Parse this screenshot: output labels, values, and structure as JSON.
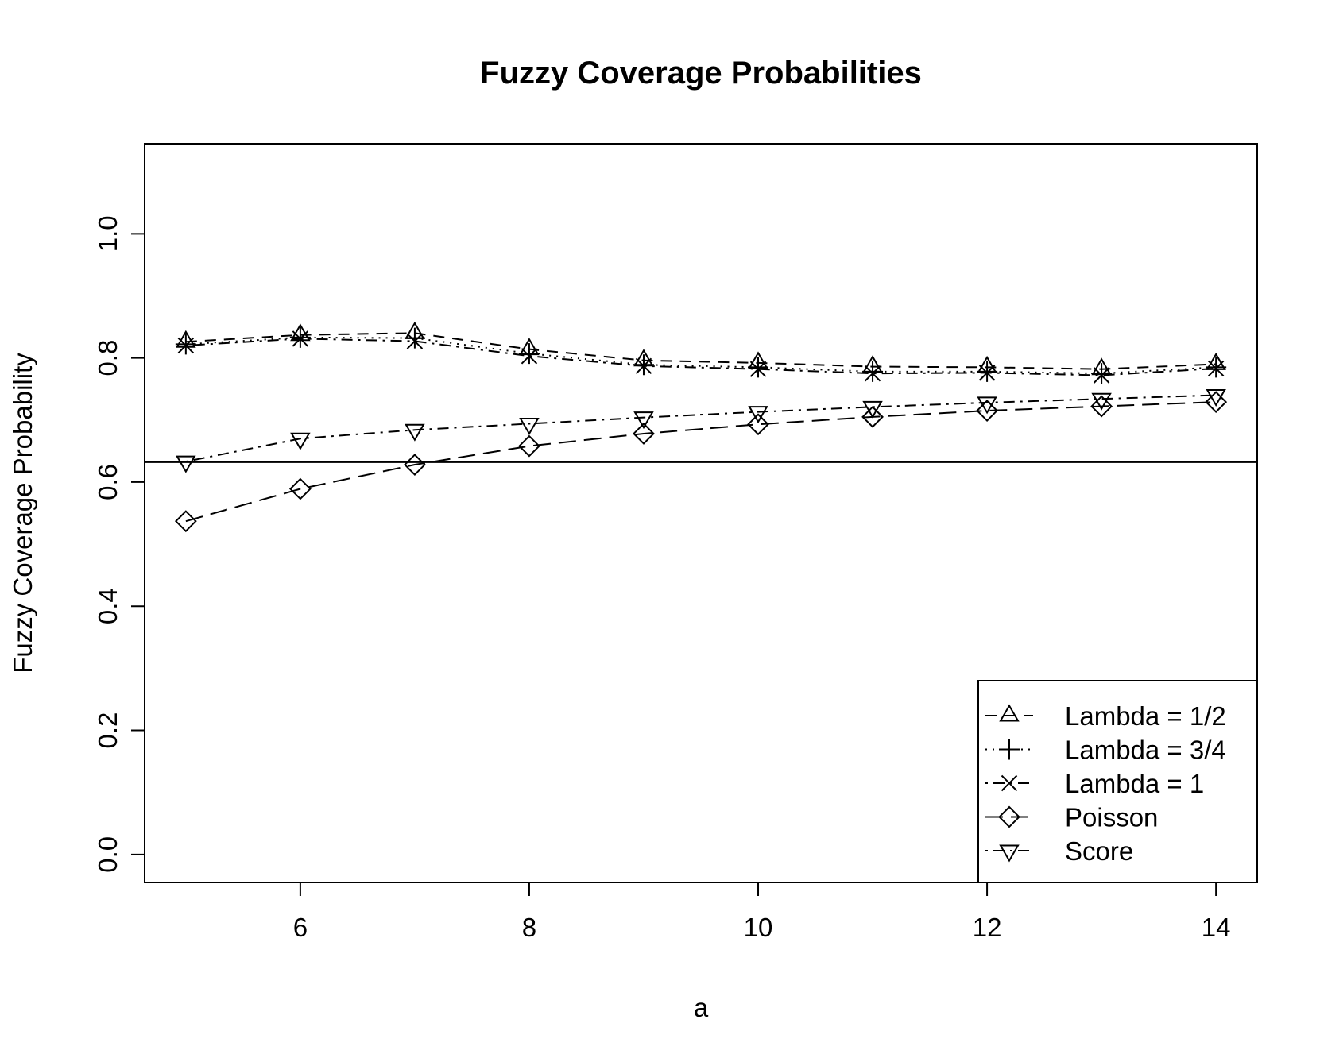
{
  "chart_data": {
    "type": "line",
    "title": "Fuzzy Coverage Probabilities",
    "xlabel": "a",
    "ylabel": "Fuzzy Coverage Probability",
    "xlim": [
      4.64,
      14.36
    ],
    "ylim": [
      -0.045,
      1.145
    ],
    "x_ticks": [
      6,
      8,
      10,
      12,
      14
    ],
    "y_ticks": [
      0.0,
      0.2,
      0.4,
      0.6,
      0.8,
      1.0
    ],
    "x_tick_labels": [
      "6",
      "8",
      "10",
      "12",
      "14"
    ],
    "y_tick_labels": [
      "0.0",
      "0.2",
      "0.4",
      "0.6",
      "0.8",
      "1.0"
    ],
    "x": [
      5,
      6,
      7,
      8,
      9,
      10,
      11,
      12,
      13,
      14
    ],
    "reference_line": 0.632,
    "legend_position": "bottom-right",
    "grid": false,
    "series": [
      {
        "name": "Lambda = 1/2",
        "marker": "triangle-up",
        "line": "dashed",
        "values": [
          0.826,
          0.837,
          0.84,
          0.814,
          0.796,
          0.792,
          0.786,
          0.785,
          0.782,
          0.79
        ]
      },
      {
        "name": "Lambda = 3/4",
        "marker": "plus",
        "line": "dotted",
        "values": [
          0.822,
          0.833,
          0.832,
          0.807,
          0.789,
          0.785,
          0.778,
          0.778,
          0.775,
          0.785
        ]
      },
      {
        "name": "Lambda = 1",
        "marker": "cross",
        "line": "dotdash",
        "values": [
          0.82,
          0.831,
          0.827,
          0.803,
          0.787,
          0.782,
          0.775,
          0.776,
          0.772,
          0.783
        ]
      },
      {
        "name": "Poisson",
        "marker": "diamond",
        "line": "longdash",
        "values": [
          0.537,
          0.589,
          0.628,
          0.658,
          0.678,
          0.693,
          0.705,
          0.715,
          0.722,
          0.729
        ]
      },
      {
        "name": "Score",
        "marker": "triangle-down",
        "line": "dotdash",
        "values": [
          0.633,
          0.67,
          0.684,
          0.694,
          0.704,
          0.713,
          0.721,
          0.728,
          0.734,
          0.74
        ]
      }
    ]
  }
}
